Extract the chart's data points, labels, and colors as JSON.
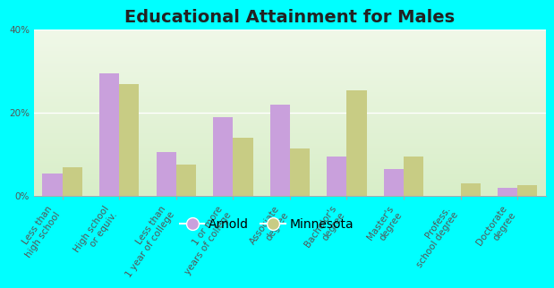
{
  "title": "Educational Attainment for Males",
  "categories": [
    "Less than\nhigh school",
    "High school\nor equiv.",
    "Less than\n1 year of college",
    "1 or more\nyears of college",
    "Associate\ndegree",
    "Bachelor's\ndegree",
    "Master's\ndegree",
    "Profess.\nschool degree",
    "Doctorate\ndegree"
  ],
  "arnold_values": [
    5.5,
    29.5,
    10.5,
    19.0,
    22.0,
    9.5,
    6.5,
    0.0,
    2.0
  ],
  "minnesota_values": [
    7.0,
    27.0,
    7.5,
    14.0,
    11.5,
    25.5,
    9.5,
    3.0,
    2.5
  ],
  "arnold_color": "#c9a0dc",
  "minnesota_color": "#c8cc84",
  "background_color_top": "#f0f8e8",
  "background_color_bottom": "#d8eec8",
  "outer_background": "#00ffff",
  "ylim": [
    0,
    40
  ],
  "yticks": [
    0,
    20,
    40
  ],
  "ytick_labels": [
    "0%",
    "20%",
    "40%"
  ],
  "legend_labels": [
    "Arnold",
    "Minnesota"
  ],
  "bar_width": 0.35,
  "title_fontsize": 14,
  "tick_fontsize": 7.5,
  "legend_fontsize": 10
}
